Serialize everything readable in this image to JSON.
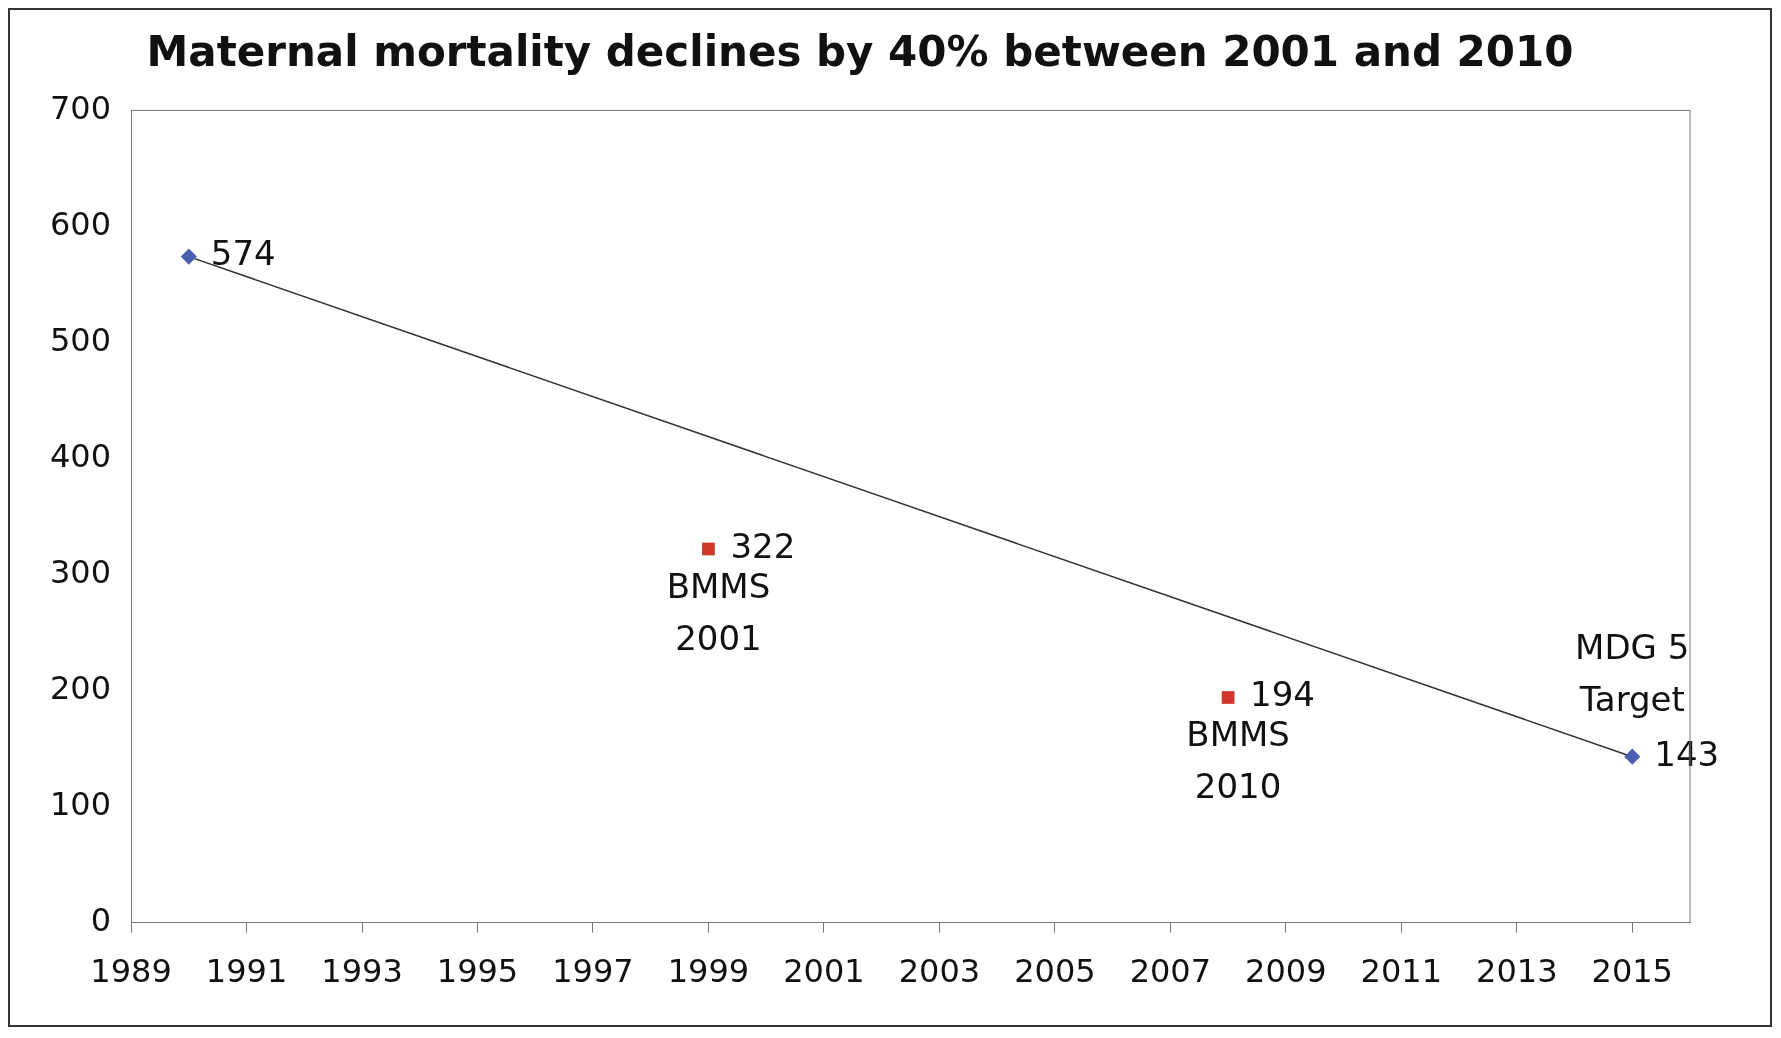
{
  "chart_data": {
    "type": "scatter",
    "title": "Maternal mortality declines by 40% between 2001 and 2010",
    "xlim": [
      1989,
      2016
    ],
    "xticks": [
      1989,
      1991,
      1993,
      1995,
      1997,
      1999,
      2001,
      2003,
      2005,
      2007,
      2009,
      2011,
      2013,
      2015
    ],
    "ylim": [
      0,
      700
    ],
    "yticks": [
      0,
      100,
      200,
      300,
      400,
      500,
      600,
      700
    ],
    "grid": false,
    "legend": false,
    "data_labels": true,
    "series": [
      {
        "type": "line",
        "color": "#4a5fb0",
        "marker": "diamond",
        "x": [
          1990,
          2015
        ],
        "values": [
          574,
          143
        ]
      },
      {
        "type": "scatter",
        "color": "#d0382a",
        "marker": "square",
        "x": [
          1999,
          2008
        ],
        "values": [
          322,
          194
        ]
      }
    ],
    "annotations": [
      {
        "text": "BMMS 2001",
        "x": 1999,
        "y": 322
      },
      {
        "text": "BMMS 2010",
        "x": 2008,
        "y": 194
      },
      {
        "text": "MDG 5 Target",
        "x": 2015,
        "y": 143
      }
    ]
  }
}
